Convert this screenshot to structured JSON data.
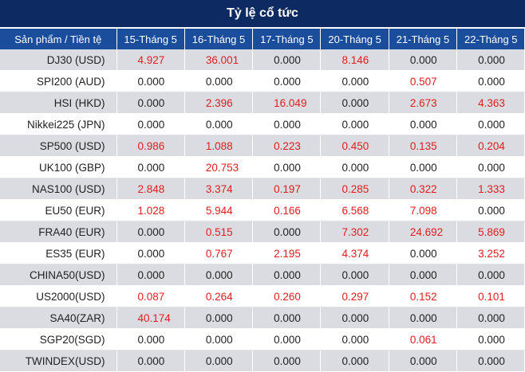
{
  "title": "Tỷ lệ cổ tức",
  "header": {
    "product_col": "Sản phẩm / Tiền tệ",
    "dates": [
      "15-Tháng 5",
      "16-Tháng 5",
      "17-Tháng 5",
      "20-Tháng 5",
      "21-Tháng 5",
      "22-Tháng 5"
    ]
  },
  "colors": {
    "title_bg": "#0e2a63",
    "header_bg": "#1a4d9c",
    "shade_row": "#dadce1",
    "positive": "#e11d1d",
    "zero": "#222222"
  },
  "rows": [
    {
      "product": "DJ30 (USD)",
      "values": [
        "4.927",
        "36.001",
        "0.000",
        "8.146",
        "0.000",
        "0.000"
      ]
    },
    {
      "product": "SPI200 (AUD)",
      "values": [
        "0.000",
        "0.000",
        "0.000",
        "0.000",
        "0.507",
        "0.000"
      ]
    },
    {
      "product": "HSI (HKD)",
      "values": [
        "0.000",
        "2.396",
        "16.049",
        "0.000",
        "2.673",
        "4.363"
      ]
    },
    {
      "product": "Nikkei225 (JPN)",
      "values": [
        "0.000",
        "0.000",
        "0.000",
        "0.000",
        "0.000",
        "0.000"
      ]
    },
    {
      "product": "SP500 (USD)",
      "values": [
        "0.986",
        "1.088",
        "0.223",
        "0.450",
        "0.135",
        "0.204"
      ]
    },
    {
      "product": "UK100 (GBP)",
      "values": [
        "0.000",
        "20.753",
        "0.000",
        "0.000",
        "0.000",
        "0.000"
      ]
    },
    {
      "product": "NAS100 (USD)",
      "values": [
        "2.848",
        "3.374",
        "0.197",
        "0.285",
        "0.322",
        "1.333"
      ]
    },
    {
      "product": "EU50 (EUR)",
      "values": [
        "1.028",
        "5.944",
        "0.166",
        "6.568",
        "7.098",
        "0.000"
      ]
    },
    {
      "product": "FRA40 (EUR)",
      "values": [
        "0.000",
        "0.515",
        "0.000",
        "7.302",
        "24.692",
        "5.869"
      ]
    },
    {
      "product": "ES35 (EUR)",
      "values": [
        "0.000",
        "0.767",
        "2.195",
        "4.374",
        "0.000",
        "3.252"
      ]
    },
    {
      "product": "CHINA50(USD)",
      "values": [
        "0.000",
        "0.000",
        "0.000",
        "0.000",
        "0.000",
        "0.000"
      ]
    },
    {
      "product": "US2000(USD)",
      "values": [
        "0.087",
        "0.264",
        "0.260",
        "0.297",
        "0.152",
        "0.101"
      ]
    },
    {
      "product": "SA40(ZAR)",
      "values": [
        "40.174",
        "0.000",
        "0.000",
        "0.000",
        "0.000",
        "0.000"
      ]
    },
    {
      "product": "SGP20(SGD)",
      "values": [
        "0.000",
        "0.000",
        "0.000",
        "0.000",
        "0.061",
        "0.000"
      ]
    },
    {
      "product": "TWINDEX(USD)",
      "values": [
        "0.000",
        "0.000",
        "0.000",
        "0.000",
        "0.000",
        "0.000"
      ]
    }
  ]
}
